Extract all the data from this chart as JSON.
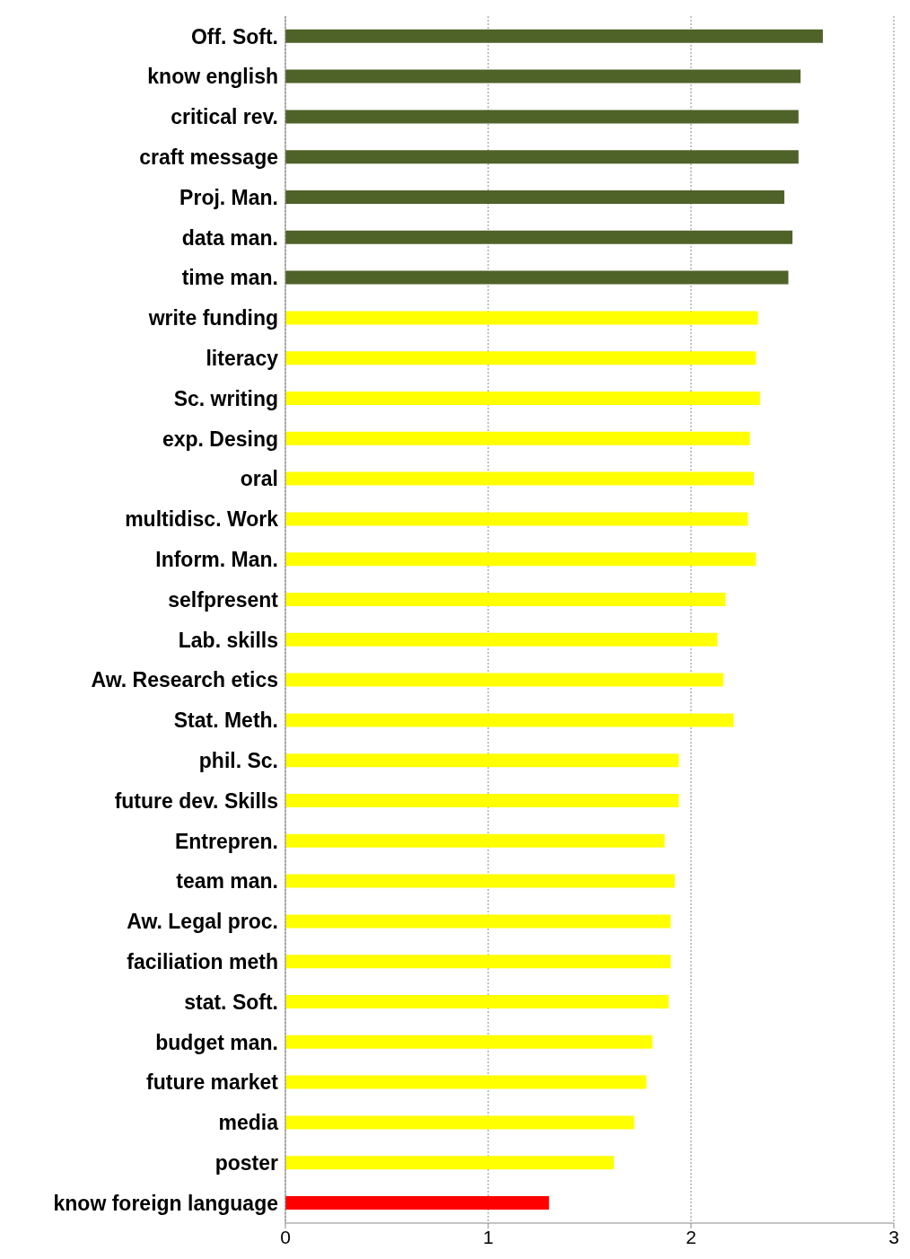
{
  "chart_data": {
    "type": "bar",
    "orientation": "horizontal",
    "categories": [
      "Off. Soft.",
      "know english",
      "critical rev.",
      "craft message",
      "Proj. Man.",
      "data man.",
      "time man.",
      "write funding",
      "literacy",
      "Sc. writing",
      "exp. Desing",
      "oral",
      "multidisc. Work",
      "Inform. Man.",
      "selfpresent",
      "Lab. skills",
      "Aw. Research etics",
      "Stat. Meth.",
      "phil. Sc.",
      "future dev. Skills",
      "Entrepren.",
      "team man.",
      "Aw. Legal proc.",
      "faciliation meth",
      "stat. Soft.",
      "budget man.",
      "future market",
      "media",
      "poster",
      "know foreign language"
    ],
    "values": [
      2.65,
      2.54,
      2.53,
      2.53,
      2.46,
      2.5,
      2.48,
      2.33,
      2.32,
      2.34,
      2.29,
      2.31,
      2.28,
      2.32,
      2.17,
      2.13,
      2.16,
      2.21,
      1.94,
      1.94,
      1.87,
      1.92,
      1.9,
      1.9,
      1.89,
      1.81,
      1.78,
      1.72,
      1.62,
      1.3
    ],
    "colors": [
      "#4f6228",
      "#4f6228",
      "#4f6228",
      "#4f6228",
      "#4f6228",
      "#4f6228",
      "#4f6228",
      "#ffff00",
      "#ffff00",
      "#ffff00",
      "#ffff00",
      "#ffff00",
      "#ffff00",
      "#ffff00",
      "#ffff00",
      "#ffff00",
      "#ffff00",
      "#ffff00",
      "#ffff00",
      "#ffff00",
      "#ffff00",
      "#ffff00",
      "#ffff00",
      "#ffff00",
      "#ffff00",
      "#ffff00",
      "#ffff00",
      "#ffff00",
      "#ffff00",
      "#ff0000"
    ],
    "xlim": [
      0,
      3
    ],
    "xticks": [
      0,
      1,
      2,
      3
    ],
    "grid": "x",
    "legend": false
  }
}
